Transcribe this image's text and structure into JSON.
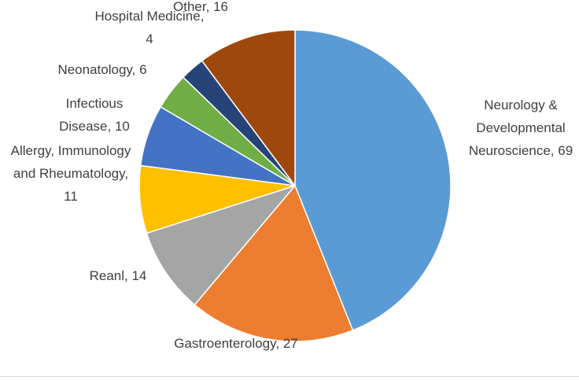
{
  "chart_data": {
    "type": "pie",
    "categories": [
      "Neurology & Developmental Neuroscience",
      "Gastroenterology",
      "Reanl",
      "Allergy, Immunology and Rheumatology",
      "Infectious Disease",
      "Neonatology",
      "Hospital Medicine",
      "Other"
    ],
    "values": [
      69,
      27,
      14,
      11,
      10,
      6,
      4,
      16
    ],
    "colors": [
      "#5b9bd5",
      "#ed7d31",
      "#a5a5a5",
      "#ffc000",
      "#4472c4",
      "#70ad47",
      "#264478",
      "#9e480e"
    ]
  }
}
